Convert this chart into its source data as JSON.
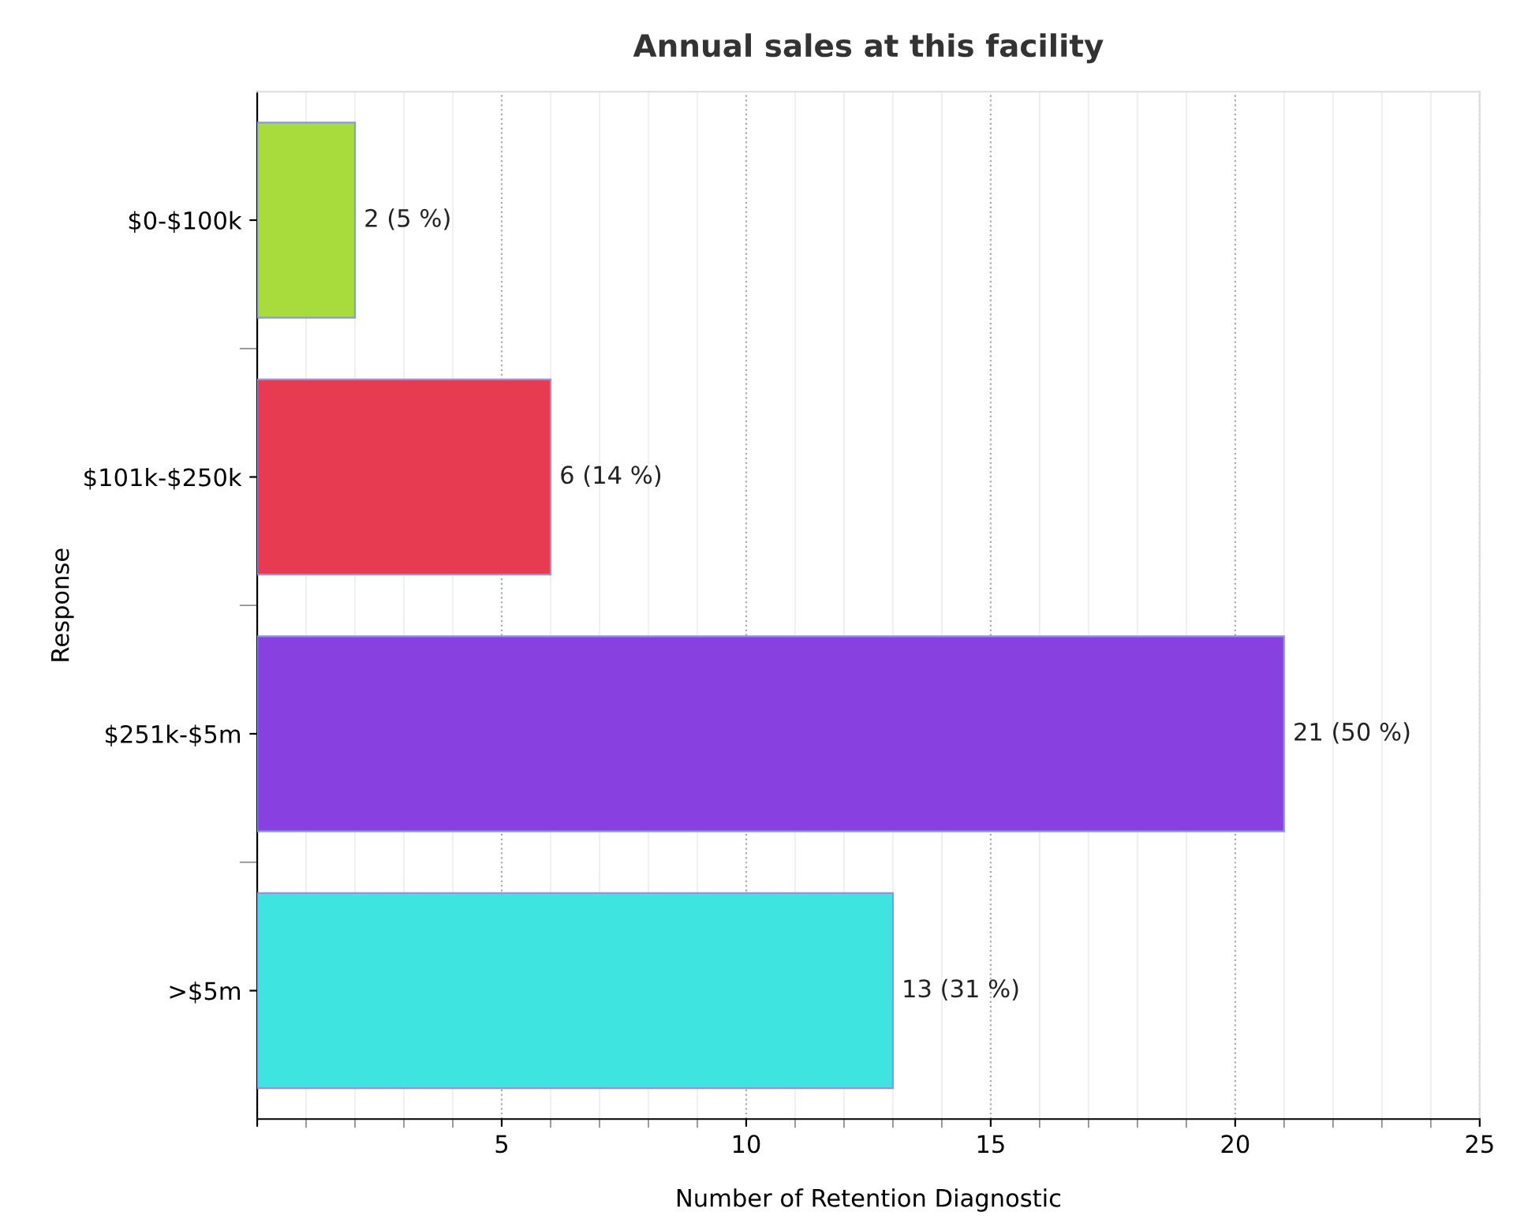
{
  "chart_data": {
    "type": "bar",
    "orientation": "horizontal",
    "title": "Annual sales at this facility",
    "xlabel": "Number of Retention Diagnostic",
    "ylabel": "Response",
    "categories": [
      "$0-$100k",
      "$101k-$250k",
      "$251k-$5m",
      ">$5m"
    ],
    "values": [
      2,
      6,
      21,
      13
    ],
    "colors": [
      "#a8dc3c",
      "#e63b50",
      "#8840e0",
      "#3ee4e0"
    ],
    "value_labels": [
      "2 (5 %)",
      "6 (14 %)",
      "21 (50 %)",
      "13 (31 %)"
    ],
    "xlim": [
      0,
      25
    ],
    "xticks": [
      {
        "value": 0,
        "label": null
      },
      5,
      10,
      15,
      20,
      25
    ],
    "grid": "x",
    "legend": false
  }
}
